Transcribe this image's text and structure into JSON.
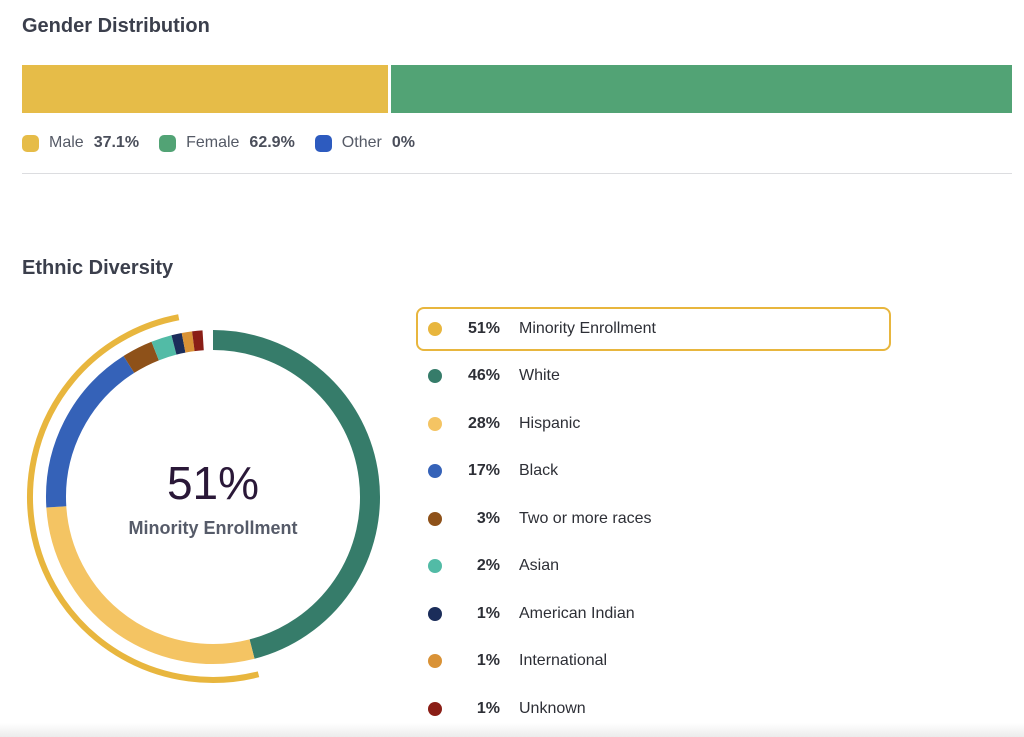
{
  "gender": {
    "title": "Gender Distribution",
    "items": [
      {
        "label": "Male",
        "value": "37.1%",
        "pct": 37.1,
        "color": "#e6bc48"
      },
      {
        "label": "Female",
        "value": "62.9%",
        "pct": 62.9,
        "color": "#52a375"
      },
      {
        "label": "Other",
        "value": "0%",
        "pct": 0,
        "color": "#2d5bbf"
      }
    ]
  },
  "ethnic": {
    "title": "Ethnic Diversity",
    "center_value": "51%",
    "center_label": "Minority Enrollment"
  },
  "chart_data": {
    "type": "pie",
    "title": "Ethnic Diversity",
    "highlight": {
      "label": "Minority Enrollment",
      "value": 51,
      "display": "51%",
      "color": "#e8b63e"
    },
    "slices": [
      {
        "label": "White",
        "value": 46,
        "display": "46%",
        "color": "#367c6a"
      },
      {
        "label": "Hispanic",
        "value": 28,
        "display": "28%",
        "color": "#f4c463"
      },
      {
        "label": "Black",
        "value": 17,
        "display": "17%",
        "color": "#3562b8"
      },
      {
        "label": "Two or more races",
        "value": 3,
        "display": "3%",
        "color": "#8e5119"
      },
      {
        "label": "Asian",
        "value": 2,
        "display": "2%",
        "color": "#52bba6"
      },
      {
        "label": "American Indian",
        "value": 1,
        "display": "1%",
        "color": "#1b2d5a"
      },
      {
        "label": "International",
        "value": 1,
        "display": "1%",
        "color": "#d99236"
      },
      {
        "label": "Unknown",
        "value": 1,
        "display": "1%",
        "color": "#8a1e16"
      }
    ]
  }
}
